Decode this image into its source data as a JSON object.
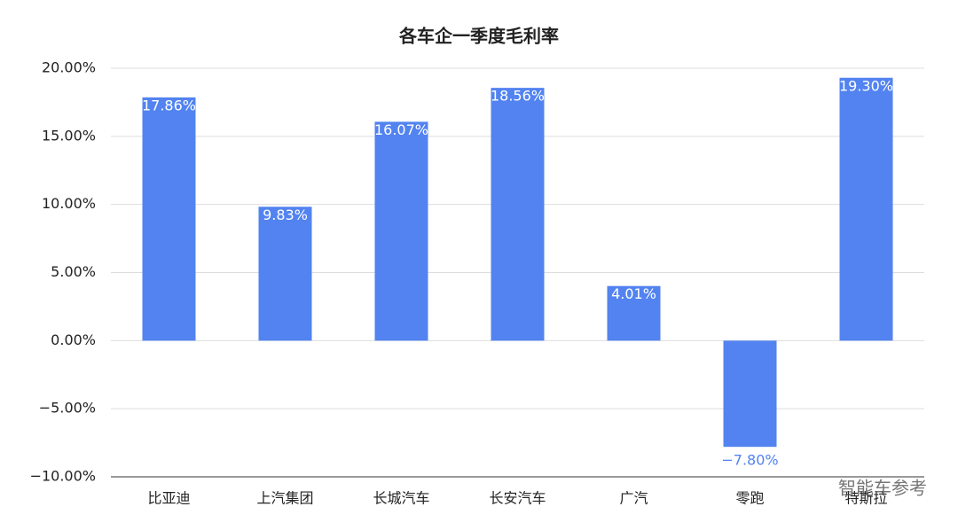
{
  "chart_data": {
    "type": "bar",
    "title": "各车企一季度毛利率",
    "categories": [
      "比亚迪",
      "上汽集团",
      "长城汽车",
      "长安汽车",
      "广汽",
      "零跑",
      "特斯拉"
    ],
    "values": [
      17.86,
      9.83,
      16.07,
      18.56,
      4.01,
      -7.8,
      19.3
    ],
    "value_labels": [
      "17.86%",
      "9.83%",
      "16.07%",
      "18.56%",
      "4.01%",
      "−7.80%",
      "19.30%"
    ],
    "color": "#5283f0",
    "ylim": [
      -10,
      20
    ],
    "yticks": [
      {
        "value": -10,
        "label": "−10.00%"
      },
      {
        "value": -5,
        "label": "−5.00%"
      },
      {
        "value": 0,
        "label": "0.00%"
      },
      {
        "value": 5,
        "label": "5.00%"
      },
      {
        "value": 10,
        "label": "10.00%"
      },
      {
        "value": 15,
        "label": "15.00%"
      },
      {
        "value": 20,
        "label": "20.00%"
      }
    ],
    "grid": true,
    "watermark": "智能车参考"
  }
}
